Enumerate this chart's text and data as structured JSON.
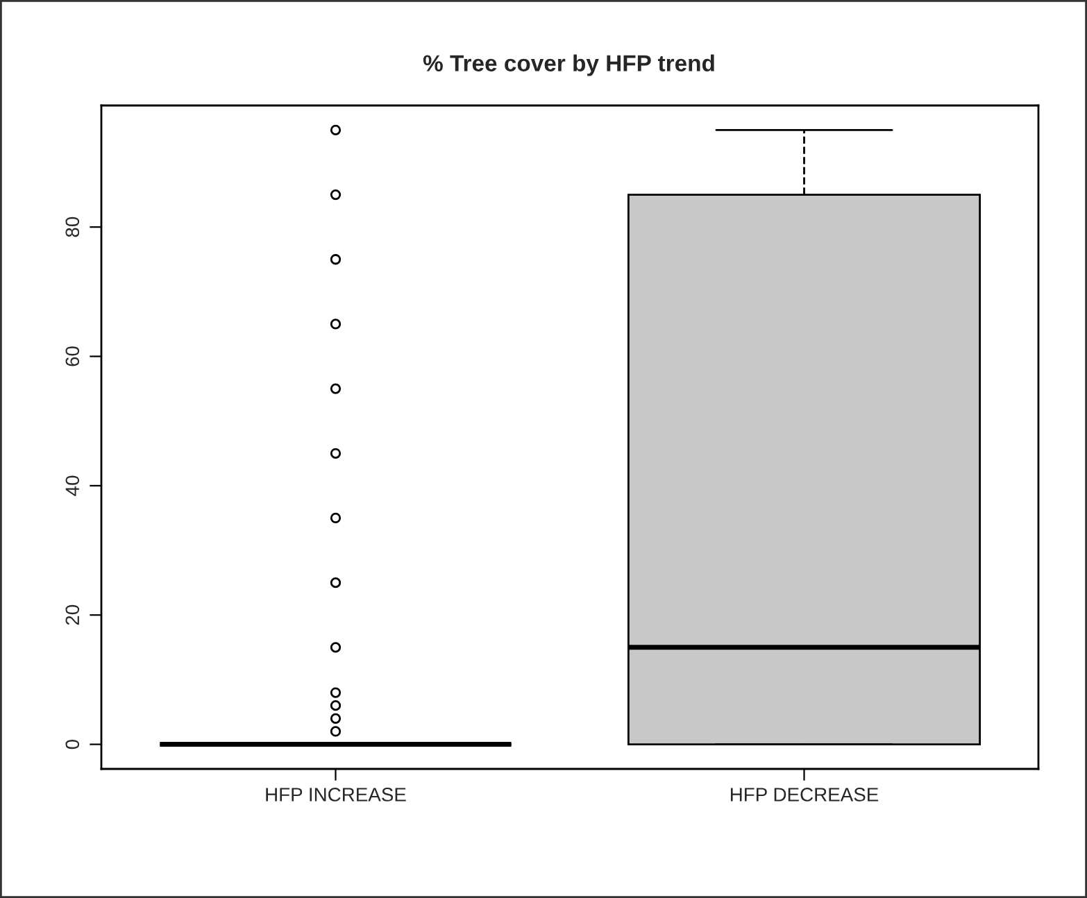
{
  "chart_data": {
    "type": "box",
    "title": "% Tree cover by HFP trend",
    "categories": [
      "HFP INCREASE",
      "HFP DECREASE"
    ],
    "boxes": [
      {
        "low": 0,
        "q1": 0,
        "median": 0,
        "q3": 0,
        "high": 0,
        "outliers": [
          2,
          4,
          6,
          8,
          15,
          25,
          35,
          45,
          55,
          65,
          75,
          85,
          95
        ]
      },
      {
        "low": 0,
        "q1": 0,
        "median": 15,
        "q3": 85,
        "high": 95
      }
    ],
    "colors": [
      "#000000",
      "#c8c8c8"
    ],
    "ylim": [
      -3.8,
      98.8
    ],
    "yticks": [
      0,
      20,
      40,
      60,
      80
    ],
    "legend": false
  }
}
